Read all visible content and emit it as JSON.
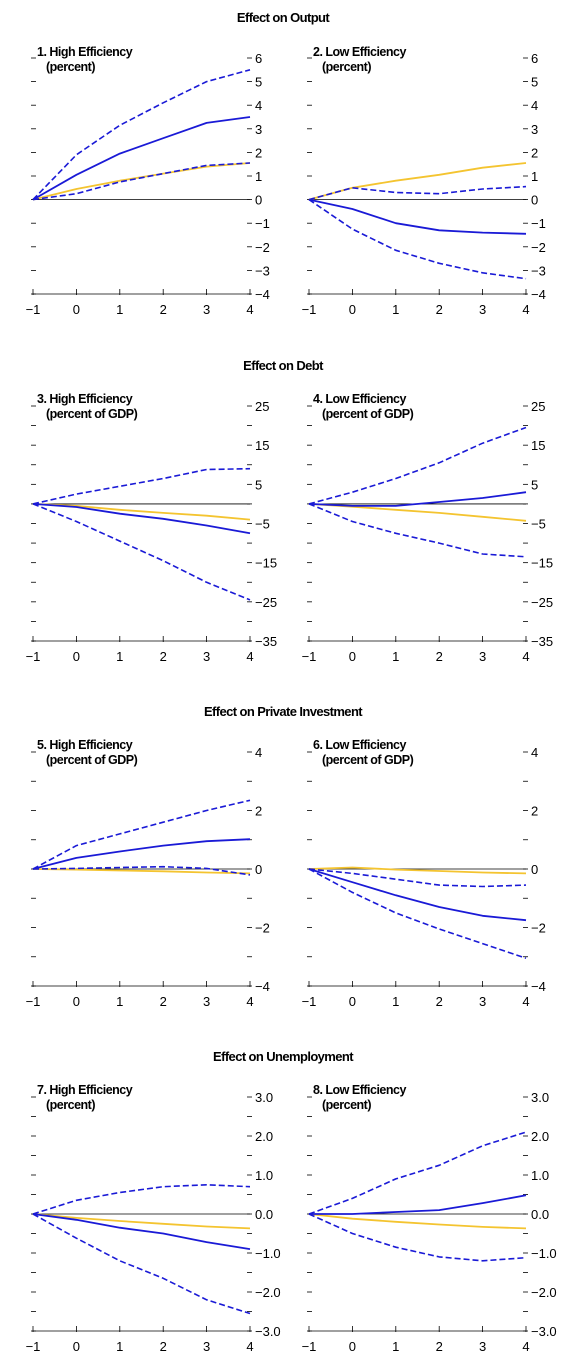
{
  "figure": {
    "section_titles": [
      "Effect on Output",
      "Effect on Debt",
      "Effect on Private Investment",
      "Effect on Unemployment"
    ]
  },
  "colors": {
    "baseline": "#f4c430",
    "estimate": "#1a1ad6",
    "band": "#1a1ad6",
    "zero_line": "#000000"
  },
  "chart_data": [
    {
      "type": "line",
      "section": 0,
      "column": 0,
      "title": "1. High Efficiency",
      "subtitle": "(percent)",
      "x": [
        -1,
        0,
        1,
        2,
        3,
        4
      ],
      "ylim": [
        -4,
        6
      ],
      "yticks": [
        -4,
        -3,
        -2,
        -1,
        0,
        1,
        2,
        3,
        4,
        5,
        6
      ],
      "ytick_labels": [
        "−4",
        "−3",
        "−2",
        "−1",
        "0",
        "1",
        "2",
        "3",
        "4",
        "5",
        "6"
      ],
      "series": [
        {
          "role": "baseline",
          "values": [
            0,
            0.45,
            0.8,
            1.1,
            1.4,
            1.55
          ]
        },
        {
          "role": "upper",
          "values": [
            0,
            1.9,
            3.15,
            4.1,
            5.0,
            5.5
          ]
        },
        {
          "role": "estimate",
          "values": [
            0,
            1.05,
            1.95,
            2.6,
            3.25,
            3.5
          ]
        },
        {
          "role": "lower",
          "values": [
            0,
            0.25,
            0.75,
            1.1,
            1.45,
            1.55
          ]
        }
      ]
    },
    {
      "type": "line",
      "section": 0,
      "column": 1,
      "title": "2. Low Efficiency",
      "subtitle": "(percent)",
      "x": [
        -1,
        0,
        1,
        2,
        3,
        4
      ],
      "ylim": [
        -4,
        6
      ],
      "yticks": [
        -4,
        -3,
        -2,
        -1,
        0,
        1,
        2,
        3,
        4,
        5,
        6
      ],
      "ytick_labels": [
        "−4",
        "−3",
        "−2",
        "−1",
        "0",
        "1",
        "2",
        "3",
        "4",
        "5",
        "6"
      ],
      "series": [
        {
          "role": "baseline",
          "values": [
            0,
            0.5,
            0.8,
            1.05,
            1.35,
            1.55
          ]
        },
        {
          "role": "upper",
          "values": [
            0,
            0.5,
            0.3,
            0.25,
            0.45,
            0.55
          ]
        },
        {
          "role": "estimate",
          "values": [
            0,
            -0.4,
            -1.0,
            -1.3,
            -1.4,
            -1.45
          ]
        },
        {
          "role": "lower",
          "values": [
            0,
            -1.25,
            -2.15,
            -2.7,
            -3.1,
            -3.35
          ]
        }
      ]
    },
    {
      "type": "line",
      "section": 1,
      "column": 0,
      "title": "3. High Efficiency",
      "subtitle": "(percent of GDP)",
      "x": [
        -1,
        0,
        1,
        2,
        3,
        4
      ],
      "ylim": [
        -35,
        25
      ],
      "yticks": [
        -35,
        -30,
        -25,
        -20,
        -15,
        -10,
        -5,
        0,
        5,
        10,
        15,
        20,
        25
      ],
      "ytick_labels": [
        "−35",
        "",
        "−25",
        "",
        "−15",
        "",
        "−5",
        "",
        "5",
        "",
        "15",
        "",
        "25"
      ],
      "series": [
        {
          "role": "baseline",
          "values": [
            0,
            -0.5,
            -1.5,
            -2.3,
            -3.0,
            -4.0
          ]
        },
        {
          "role": "upper",
          "values": [
            0,
            2.5,
            4.5,
            6.5,
            8.8,
            9.0
          ]
        },
        {
          "role": "estimate",
          "values": [
            0,
            -0.8,
            -2.5,
            -3.8,
            -5.5,
            -7.5
          ]
        },
        {
          "role": "lower",
          "values": [
            0,
            -4.5,
            -9.5,
            -14.5,
            -20.0,
            -24.5
          ]
        }
      ]
    },
    {
      "type": "line",
      "section": 1,
      "column": 1,
      "title": "4. Low Efficiency",
      "subtitle": "(percent of GDP)",
      "x": [
        -1,
        0,
        1,
        2,
        3,
        4
      ],
      "ylim": [
        -35,
        25
      ],
      "yticks": [
        -35,
        -30,
        -25,
        -20,
        -15,
        -10,
        -5,
        0,
        5,
        10,
        15,
        20,
        25
      ],
      "ytick_labels": [
        "−35",
        "",
        "−25",
        "",
        "−15",
        "",
        "−5",
        "",
        "5",
        "",
        "15",
        "",
        "25"
      ],
      "series": [
        {
          "role": "baseline",
          "values": [
            0,
            -0.7,
            -1.5,
            -2.3,
            -3.3,
            -4.3
          ]
        },
        {
          "role": "upper",
          "values": [
            0,
            3.0,
            6.5,
            10.5,
            15.5,
            19.5
          ]
        },
        {
          "role": "estimate",
          "values": [
            0,
            -0.5,
            -0.5,
            0.5,
            1.5,
            3.0
          ]
        },
        {
          "role": "lower",
          "values": [
            0,
            -4.5,
            -7.5,
            -10.0,
            -12.8,
            -13.5
          ]
        }
      ]
    },
    {
      "type": "line",
      "section": 2,
      "column": 0,
      "title": "5. High Efficiency",
      "subtitle": "(percent of GDP)",
      "x": [
        -1,
        0,
        1,
        2,
        3,
        4
      ],
      "ylim": [
        -4,
        4
      ],
      "yticks": [
        -4,
        -3,
        -2,
        -1,
        0,
        1,
        2,
        3,
        4
      ],
      "ytick_labels": [
        "−4",
        "",
        "−2",
        "",
        "0",
        "",
        "2",
        "",
        "4"
      ],
      "series": [
        {
          "role": "baseline",
          "values": [
            0,
            -0.02,
            -0.05,
            -0.08,
            -0.12,
            -0.15
          ]
        },
        {
          "role": "upper",
          "values": [
            0,
            0.8,
            1.2,
            1.6,
            2.0,
            2.35
          ]
        },
        {
          "role": "estimate",
          "values": [
            0,
            0.38,
            0.6,
            0.8,
            0.95,
            1.02
          ]
        },
        {
          "role": "lower",
          "values": [
            0,
            0.02,
            0.05,
            0.08,
            0.02,
            -0.2
          ]
        }
      ]
    },
    {
      "type": "line",
      "section": 2,
      "column": 1,
      "title": "6. Low Efficiency",
      "subtitle": "(percent of GDP)",
      "x": [
        -1,
        0,
        1,
        2,
        3,
        4
      ],
      "ylim": [
        -4,
        4
      ],
      "yticks": [
        -4,
        -3,
        -2,
        -1,
        0,
        1,
        2,
        3,
        4
      ],
      "ytick_labels": [
        "−4",
        "",
        "−2",
        "",
        "0",
        "",
        "2",
        "",
        "4"
      ],
      "series": [
        {
          "role": "baseline",
          "values": [
            0,
            0.05,
            -0.02,
            -0.07,
            -0.12,
            -0.15
          ]
        },
        {
          "role": "upper",
          "values": [
            0,
            -0.15,
            -0.35,
            -0.55,
            -0.6,
            -0.55
          ]
        },
        {
          "role": "estimate",
          "values": [
            0,
            -0.45,
            -0.9,
            -1.3,
            -1.6,
            -1.75
          ]
        },
        {
          "role": "lower",
          "values": [
            0,
            -0.8,
            -1.5,
            -2.05,
            -2.55,
            -3.05
          ]
        }
      ]
    },
    {
      "type": "line",
      "section": 3,
      "column": 0,
      "title": "7. High Efficiency",
      "subtitle": "(percent)",
      "x": [
        -1,
        0,
        1,
        2,
        3,
        4
      ],
      "ylim": [
        -3,
        3
      ],
      "yticks": [
        -3,
        -2.5,
        -2,
        -1.5,
        -1,
        -0.5,
        0,
        0.5,
        1,
        1.5,
        2,
        2.5,
        3
      ],
      "ytick_labels": [
        "−3.0",
        "",
        "−2.0",
        "",
        "−1.0",
        "",
        "0.0",
        "",
        "1.0",
        "",
        "2.0",
        "",
        "3.0"
      ],
      "series": [
        {
          "role": "baseline",
          "values": [
            0,
            -0.1,
            -0.18,
            -0.25,
            -0.32,
            -0.37
          ]
        },
        {
          "role": "upper",
          "values": [
            0,
            0.35,
            0.55,
            0.7,
            0.75,
            0.7
          ]
        },
        {
          "role": "estimate",
          "values": [
            0,
            -0.15,
            -0.35,
            -0.5,
            -0.72,
            -0.9
          ]
        },
        {
          "role": "lower",
          "values": [
            0,
            -0.62,
            -1.2,
            -1.65,
            -2.2,
            -2.55
          ]
        }
      ]
    },
    {
      "type": "line",
      "section": 3,
      "column": 1,
      "title": "8. Low Efficiency",
      "subtitle": "(percent)",
      "x": [
        -1,
        0,
        1,
        2,
        3,
        4
      ],
      "ylim": [
        -3,
        3
      ],
      "yticks": [
        -3,
        -2.5,
        -2,
        -1.5,
        -1,
        -0.5,
        0,
        0.5,
        1,
        1.5,
        2,
        2.5,
        3
      ],
      "ytick_labels": [
        "−3.0",
        "",
        "−2.0",
        "",
        "−1.0",
        "",
        "0.0",
        "",
        "1.0",
        "",
        "2.0",
        "",
        "3.0"
      ],
      "series": [
        {
          "role": "baseline",
          "values": [
            0,
            -0.12,
            -0.2,
            -0.27,
            -0.33,
            -0.37
          ]
        },
        {
          "role": "upper",
          "values": [
            0,
            0.4,
            0.9,
            1.25,
            1.75,
            2.1
          ]
        },
        {
          "role": "estimate",
          "values": [
            0,
            0.0,
            0.05,
            0.1,
            0.28,
            0.48
          ]
        },
        {
          "role": "lower",
          "values": [
            0,
            -0.5,
            -0.85,
            -1.1,
            -1.2,
            -1.12
          ]
        }
      ]
    }
  ]
}
